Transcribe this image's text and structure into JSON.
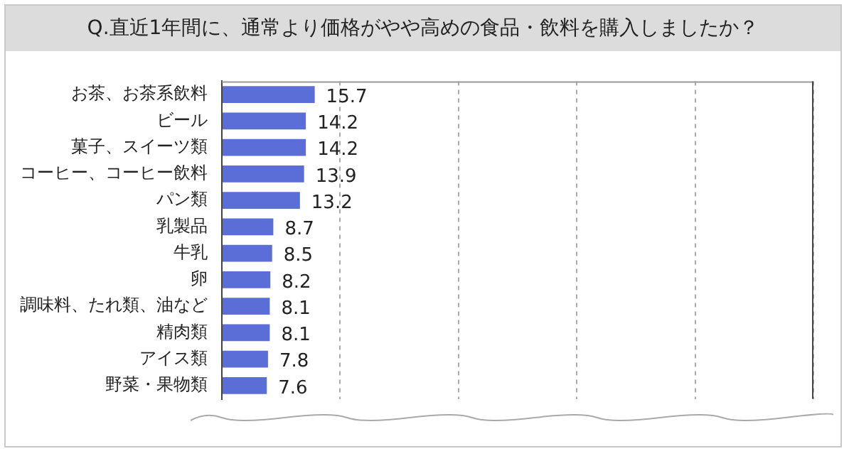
{
  "chart_data": {
    "type": "bar",
    "orientation": "horizontal",
    "title": "Q.直近1年間に、通常より価格がやや高めの食品・飲料を購入しましたか？",
    "categories": [
      "お茶、お茶系飲料",
      "ビール",
      "菓子、スイーツ類",
      "コーヒー、コーヒー飲料",
      "パン類",
      "乳製品",
      "牛乳",
      "卵",
      "調味料、たれ類、油など",
      "精肉類",
      "アイス類",
      "野菜・果物類"
    ],
    "values": [
      15.7,
      14.2,
      14.2,
      13.9,
      13.2,
      8.7,
      8.5,
      8.2,
      8.1,
      8.1,
      7.8,
      7.6
    ],
    "color": "#5b6ed8",
    "xlim": [
      0,
      100
    ],
    "grid": "x",
    "data_labels": true
  }
}
